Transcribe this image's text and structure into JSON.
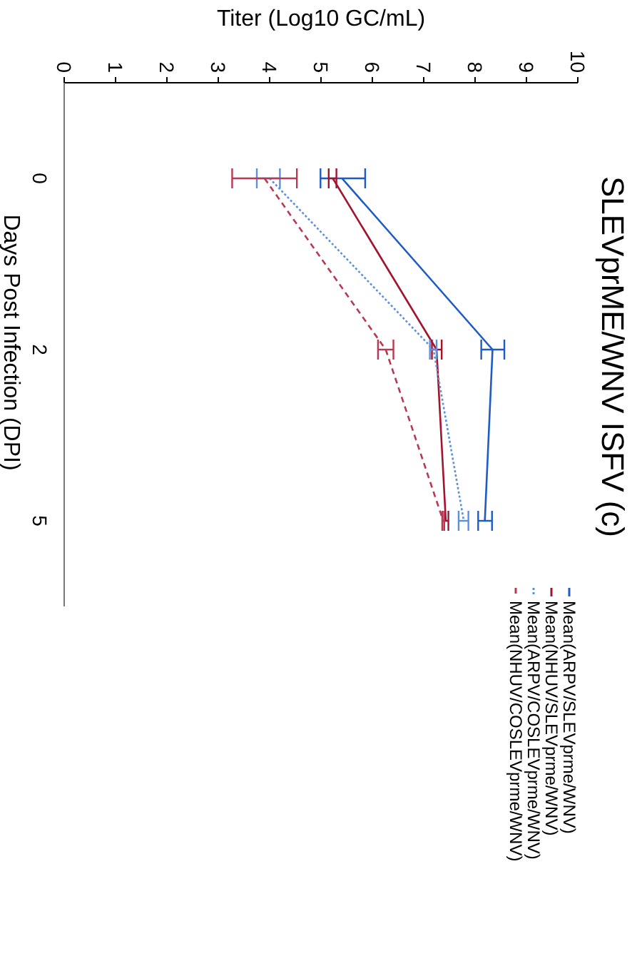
{
  "chart_data": {
    "type": "line",
    "orientation": "horizontal",
    "title": "SLEVprME/WNV ISFV (c)",
    "xlabel": "Titer (Log10 GC/mL)",
    "ylabel": "Days Post Infection (DPI)",
    "categories": [
      "0",
      "2",
      "5"
    ],
    "xlim": [
      0,
      10
    ],
    "xticks": [
      0,
      1,
      2,
      3,
      4,
      5,
      6,
      7,
      8,
      9,
      10
    ],
    "legend": "bottom right",
    "marker": "none",
    "series": [
      {
        "name": "Mean(ARPV/SLEVprme/WNV)",
        "color": "#1f5bc4",
        "line_style": "solid",
        "values": [
          5.41,
          8.34,
          8.19
        ],
        "errors": [
          [
            4.99,
            5.86
          ],
          [
            8.12,
            8.57
          ],
          [
            8.06,
            8.33
          ]
        ]
      },
      {
        "name": "Mean(NHUV/SLEVprme/WNV)",
        "color": "#a3142f",
        "line_style": "solid",
        "values": [
          5.23,
          7.25,
          7.43
        ],
        "errors": [
          [
            5.15,
            5.3
          ],
          [
            7.16,
            7.35
          ],
          [
            7.4,
            7.48
          ]
        ]
      },
      {
        "name": "Mean(ARPV/COSLEVprme/WNV)",
        "color": "#5c8fe0",
        "line_style": "dotted",
        "values": [
          4.0,
          7.19,
          7.78
        ],
        "errors": [
          [
            3.75,
            4.2
          ],
          [
            7.12,
            7.25
          ],
          [
            7.68,
            7.87
          ]
        ]
      },
      {
        "name": "Mean(NHUV/COSLEVprme/WNV)",
        "color": "#b83a52",
        "line_style": "dashed",
        "values": [
          3.9,
          6.26,
          7.38
        ],
        "errors": [
          [
            3.27,
            4.53
          ],
          [
            6.11,
            6.41
          ],
          [
            7.36,
            7.4
          ]
        ]
      }
    ]
  }
}
